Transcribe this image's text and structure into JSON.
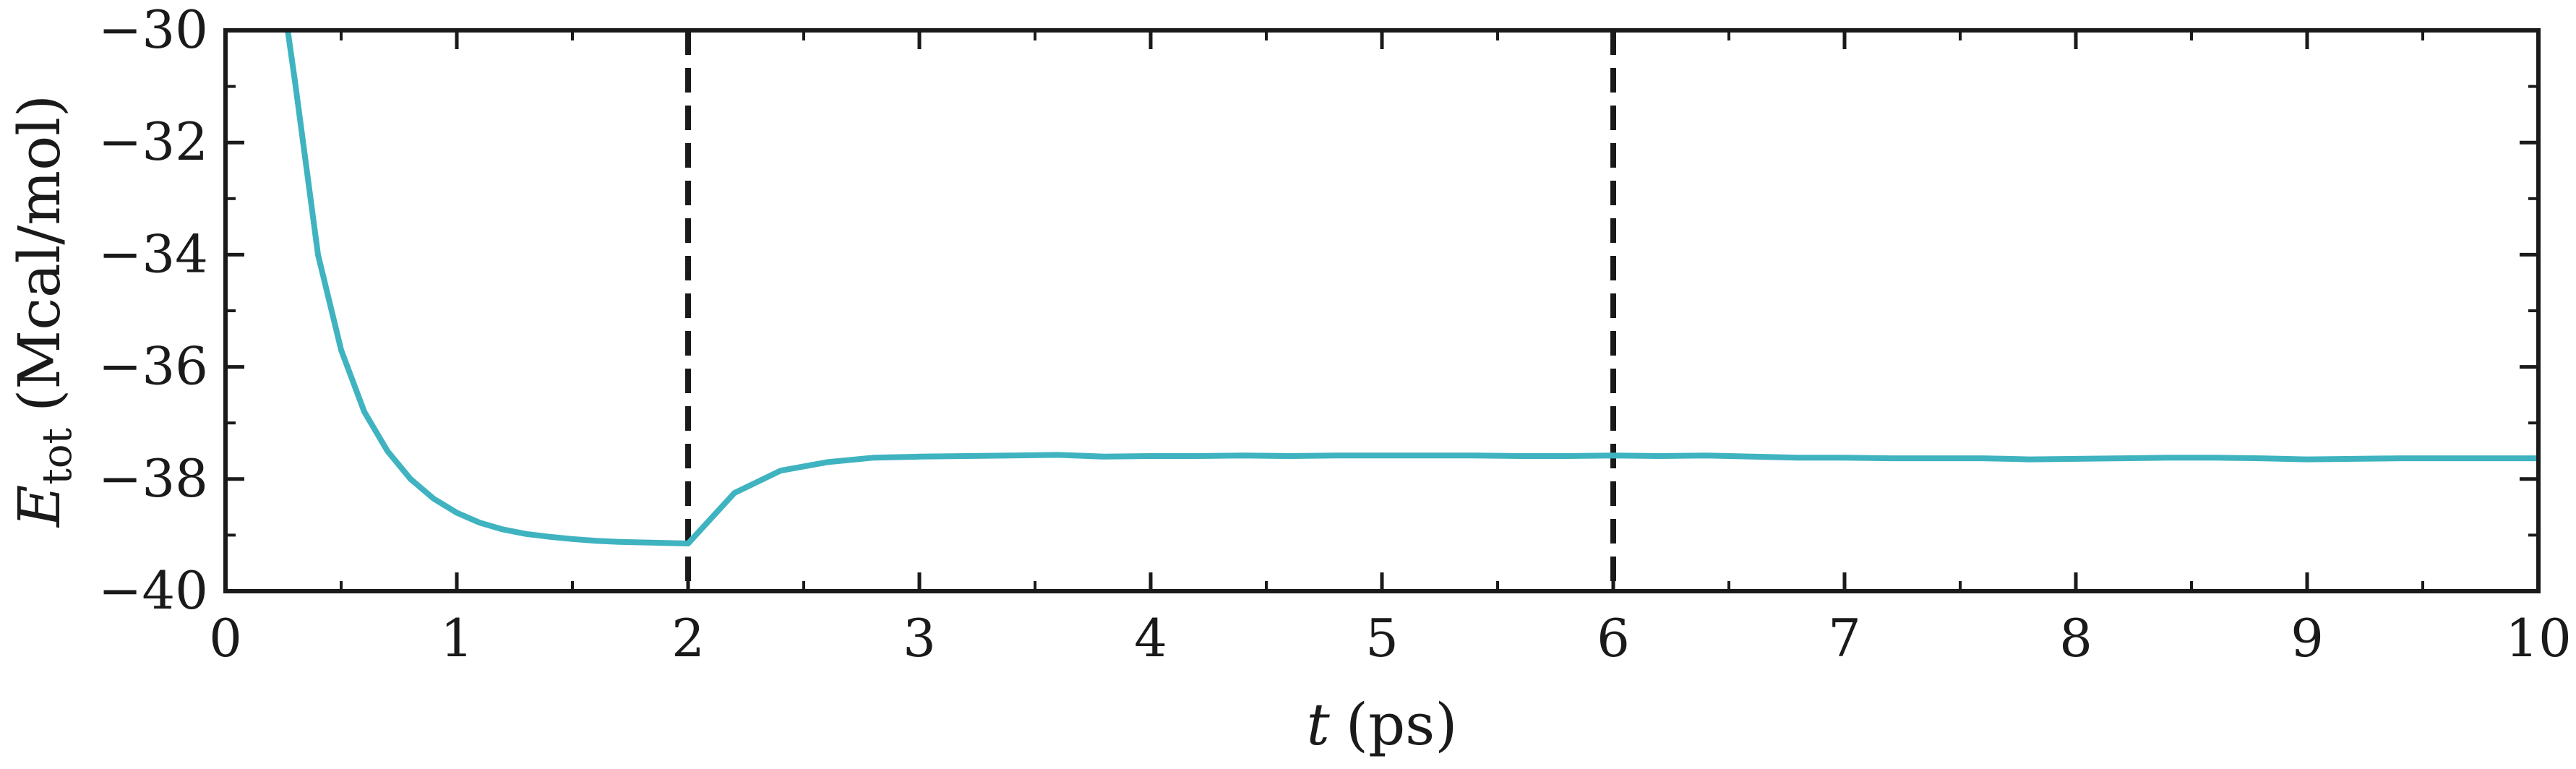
{
  "chart_data": {
    "type": "line",
    "title": "",
    "xlabel": {
      "var": "t",
      "unit": "(ps)"
    },
    "ylabel": {
      "var": "E",
      "sub": "tot",
      "unit": "(Mcal/mol)"
    },
    "xlim": [
      0,
      10
    ],
    "ylim": [
      -40,
      -30
    ],
    "xticks": [
      0,
      1,
      2,
      3,
      4,
      5,
      6,
      7,
      8,
      9,
      10
    ],
    "yticks": [
      -40,
      -38,
      -36,
      -34,
      -32,
      -30
    ],
    "ytick_labels": [
      "−40",
      "−38",
      "−36",
      "−34",
      "−32",
      "−30"
    ],
    "grid": false,
    "vlines": [
      2,
      6
    ],
    "vline_color": "#1a1a1a",
    "series": [
      {
        "color": "#3fb3c0",
        "x": [
          0.2,
          0.3,
          0.4,
          0.5,
          0.6,
          0.7,
          0.8,
          0.9,
          1.0,
          1.1,
          1.2,
          1.3,
          1.4,
          1.5,
          1.6,
          1.7,
          1.8,
          1.9,
          2.0,
          2.2,
          2.4,
          2.6,
          2.8,
          3.0,
          3.2,
          3.4,
          3.6,
          3.8,
          4.0,
          4.2,
          4.4,
          4.6,
          4.8,
          5.0,
          5.2,
          5.4,
          5.6,
          5.8,
          6.0,
          6.2,
          6.4,
          6.6,
          6.8,
          7.0,
          7.2,
          7.4,
          7.6,
          7.8,
          8.0,
          8.2,
          8.4,
          8.6,
          8.8,
          9.0,
          9.2,
          9.4,
          9.6,
          9.8,
          10.0
        ],
        "y": [
          -28.0,
          -30.9,
          -34.0,
          -35.7,
          -36.8,
          -37.5,
          -38.0,
          -38.35,
          -38.6,
          -38.78,
          -38.9,
          -38.98,
          -39.03,
          -39.07,
          -39.1,
          -39.12,
          -39.13,
          -39.14,
          -39.15,
          -38.25,
          -37.85,
          -37.7,
          -37.62,
          -37.6,
          -37.59,
          -37.58,
          -37.57,
          -37.6,
          -37.59,
          -37.59,
          -37.58,
          -37.59,
          -37.58,
          -37.58,
          -37.58,
          -37.58,
          -37.59,
          -37.59,
          -37.58,
          -37.59,
          -37.58,
          -37.6,
          -37.62,
          -37.62,
          -37.63,
          -37.63,
          -37.63,
          -37.65,
          -37.64,
          -37.63,
          -37.62,
          -37.62,
          -37.63,
          -37.65,
          -37.64,
          -37.63,
          -37.63,
          -37.63,
          -37.63
        ]
      }
    ]
  }
}
